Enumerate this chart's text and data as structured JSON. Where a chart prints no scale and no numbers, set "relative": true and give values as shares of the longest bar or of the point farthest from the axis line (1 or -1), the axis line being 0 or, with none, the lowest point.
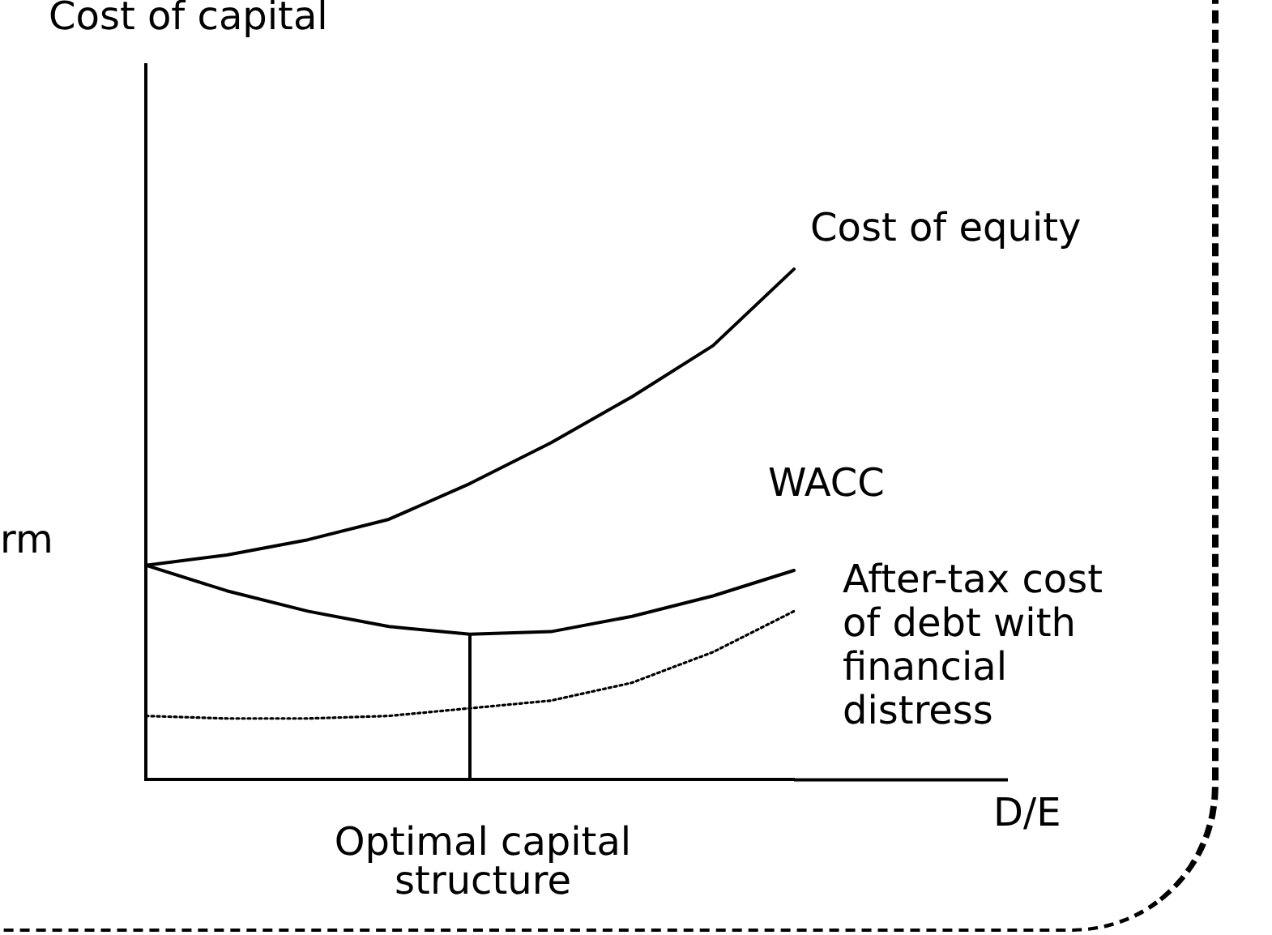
{
  "chart_data": {
    "type": "line",
    "relative": true,
    "categories": [
      null,
      null,
      null,
      null,
      null,
      null,
      null,
      null,
      null
    ],
    "series": [
      {
        "name": "Cost of equity",
        "color": "#000000",
        "line_style": "solid",
        "values": [
          0.42,
          0.44,
          0.47,
          0.51,
          0.58,
          0.66,
          0.75,
          0.85,
          1
        ]
      },
      {
        "name": "WACC",
        "color": "#000000",
        "line_style": "solid",
        "values": [
          0.42,
          0.37,
          0.33,
          0.3,
          0.285,
          0.29,
          0.32,
          0.36,
          0.41
        ]
      },
      {
        "name": "After-tax cost of debt with financial distress",
        "color": "#000000",
        "line_style": "dotted",
        "values": [
          0.125,
          0.12,
          0.12,
          0.125,
          0.14,
          0.155,
          0.19,
          0.25,
          0.33
        ]
      }
    ],
    "annotations": [
      "Cost of capital",
      "D/E",
      "rm",
      "Optimal capital structure"
    ],
    "marker": "none",
    "grid": false,
    "legend": false,
    "tick_labels": "x"
  }
}
